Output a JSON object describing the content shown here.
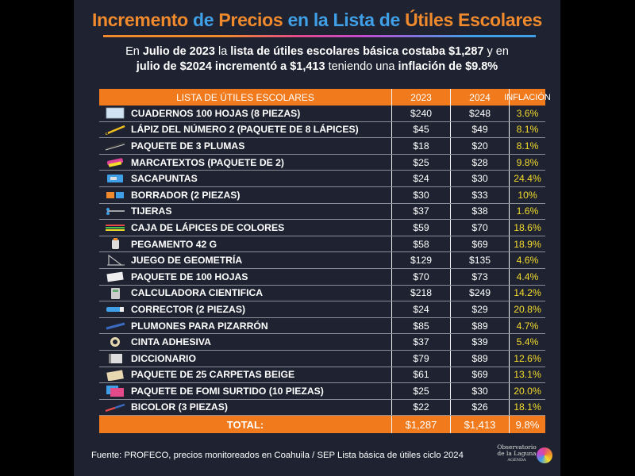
{
  "title": {
    "part1": "Incremento",
    "part2": "de",
    "part3": "Precios",
    "part4": "en la",
    "part5": "Lista de",
    "part6": "Útiles Escolares"
  },
  "subtitle": {
    "l1a": "En ",
    "l1b": "Julio de 2023",
    "l1c": " la ",
    "l1d": "lista de útiles escolares básica costaba $1,287",
    "l1e": " y en",
    "l2a": "julio de $2024 incrementó a $1,413",
    "l2b": " teniendo una ",
    "l2c": "inflación de $9.8%"
  },
  "table": {
    "headers": {
      "name": "LISTA DE ÚTILES ESCOLARES",
      "y2023": "2023",
      "y2024": "2024",
      "inflation": "INFLACIÓN"
    },
    "rows": [
      {
        "icon": "notebook-icon",
        "name": "CUADERNOS 100 HOJAS (8 PIEZAS)",
        "y2023": "$240",
        "y2024": "$248",
        "inflation": "3.6%"
      },
      {
        "icon": "pencil-icon",
        "name": "LÁPIZ DEL NÚMERO 2 (PAQUETE DE 8 LÁPICES)",
        "y2023": "$45",
        "y2024": "$49",
        "inflation": "8.1%"
      },
      {
        "icon": "pen-icon",
        "name": "PAQUETE DE 3 PLUMAS",
        "y2023": "$18",
        "y2024": "$20",
        "inflation": "8.1%"
      },
      {
        "icon": "highlighter-icon",
        "name": "MARCATEXTOS (PAQUETE DE 2)",
        "y2023": "$25",
        "y2024": "$28",
        "inflation": "9.8%"
      },
      {
        "icon": "sharpener-icon",
        "name": "SACAPUNTAS",
        "y2023": "$24",
        "y2024": "$30",
        "inflation": "24.4%"
      },
      {
        "icon": "eraser-icon",
        "name": "BORRADOR (2 PIEZAS)",
        "y2023": "$30",
        "y2024": "$33",
        "inflation": "10%"
      },
      {
        "icon": "scissors-icon",
        "name": "TIJERAS",
        "y2023": "$37",
        "y2024": "$38",
        "inflation": "1.6%"
      },
      {
        "icon": "colored-pencils-icon",
        "name": "CAJA DE LÁPICES DE COLORES",
        "y2023": "$59",
        "y2024": "$70",
        "inflation": "18.6%"
      },
      {
        "icon": "glue-icon",
        "name": "PEGAMENTO 42 G",
        "y2023": "$58",
        "y2024": "$69",
        "inflation": "18.9%"
      },
      {
        "icon": "geometry-set-icon",
        "name": "JUEGO DE GEOMETRÍA",
        "y2023": "$129",
        "y2024": "$135",
        "inflation": "4.6%"
      },
      {
        "icon": "paper-pack-icon",
        "name": "PAQUETE DE 100 HOJAS",
        "y2023": "$70",
        "y2024": "$73",
        "inflation": "4.4%"
      },
      {
        "icon": "calculator-icon",
        "name": "CALCULADORA CIENTIFICA",
        "y2023": "$218",
        "y2024": "$249",
        "inflation": "14.2%"
      },
      {
        "icon": "corrector-icon",
        "name": "CORRECTOR (2 PIEZAS)",
        "y2023": "$24",
        "y2024": "$29",
        "inflation": "20.8%"
      },
      {
        "icon": "whiteboard-marker-icon",
        "name": "PLUMONES PARA PIZARRÓN",
        "y2023": "$85",
        "y2024": "$89",
        "inflation": "4.7%"
      },
      {
        "icon": "tape-icon",
        "name": "CINTA ADHESIVA",
        "y2023": "$37",
        "y2024": "$39",
        "inflation": "5.4%"
      },
      {
        "icon": "dictionary-icon",
        "name": "DICCIONARIO",
        "y2023": "$79",
        "y2024": "$89",
        "inflation": "12.6%"
      },
      {
        "icon": "folders-icon",
        "name": "PAQUETE DE 25 CARPETAS BEIGE",
        "y2023": "$61",
        "y2024": "$69",
        "inflation": "13.1%"
      },
      {
        "icon": "foam-sheets-icon",
        "name": "PAQUETE DE FOMI SURTIDO (10 PIEZAS)",
        "y2023": "$25",
        "y2024": "$30",
        "inflation": "20.0%"
      },
      {
        "icon": "bicolor-pencil-icon",
        "name": "BICOLOR (3 PIEZAS)",
        "y2023": "$22",
        "y2024": "$26",
        "inflation": "18.1%"
      }
    ],
    "total": {
      "name": "TOTAL:",
      "y2023": "$1,287",
      "y2024": "$1,413",
      "inflation": "9.8%"
    }
  },
  "footer": "Fuente: PROFECO, precios monitoreados en Coahuila / SEP Lista básica de útiles ciclo 2024",
  "logo": {
    "line1": "Observatorio",
    "line2": "de la Laguna",
    "line3": "AGENDA"
  },
  "colors": {
    "orange": "#f07a1c",
    "blue": "#3fa0e8",
    "yellow": "#f4dc2c",
    "background": "#1f2331"
  }
}
